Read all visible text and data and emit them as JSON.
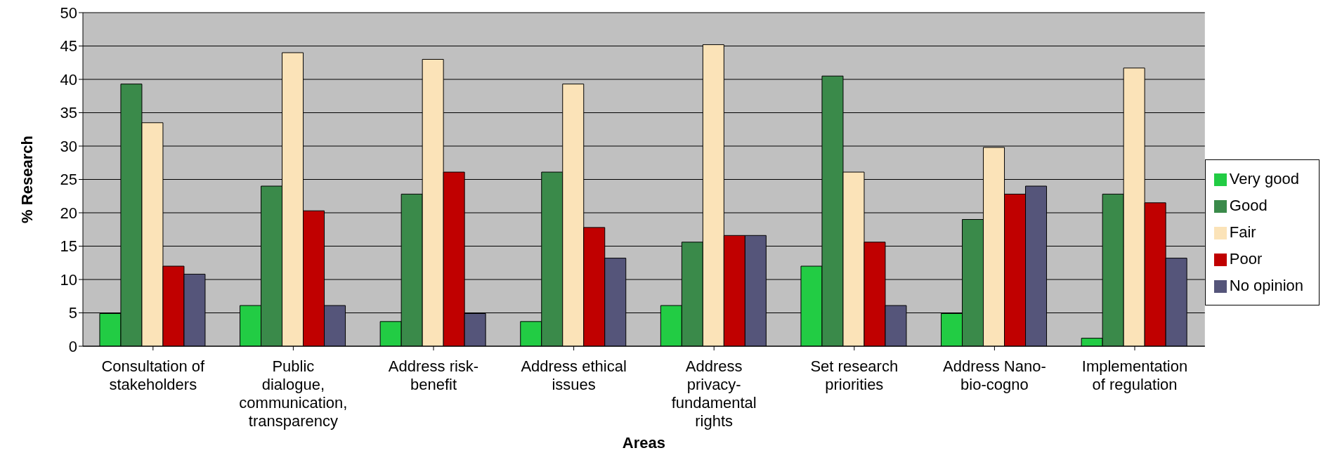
{
  "chart_data": {
    "type": "bar",
    "xlabel": "Areas",
    "ylabel": "% Research",
    "categories": [
      "Consultation of stakeholders",
      "Public dialogue, communication, transparency",
      "Address risk-benefit",
      "Address ethical issues",
      "Address privacy-fundamental rights",
      "Set research priorities",
      "Address Nano-bio-cogno",
      "Implementation of regulation"
    ],
    "series": [
      {
        "name": "Very good",
        "color": "#22cc44",
        "values": [
          4.9,
          6.1,
          3.7,
          3.7,
          6.1,
          12,
          4.9,
          1.2
        ]
      },
      {
        "name": "Good",
        "color": "#3a8a4a",
        "values": [
          39.3,
          24,
          22.8,
          26.1,
          15.6,
          40.5,
          19,
          22.8
        ]
      },
      {
        "name": "Fair",
        "color": "#fbe3b8",
        "values": [
          33.5,
          44,
          43,
          39.3,
          45.2,
          26.1,
          29.8,
          41.7
        ]
      },
      {
        "name": "Poor",
        "color": "#c00000",
        "values": [
          12,
          20.3,
          26.1,
          17.8,
          16.6,
          15.6,
          22.8,
          21.5
        ]
      },
      {
        "name": "No opinion",
        "color": "#55557a",
        "values": [
          10.8,
          6.1,
          4.9,
          13.2,
          16.6,
          6.1,
          24,
          13.2
        ]
      }
    ],
    "ylim": [
      0,
      50
    ],
    "yticks": [
      0,
      5,
      10,
      15,
      20,
      25,
      30,
      35,
      40,
      45,
      50
    ],
    "grid": "y",
    "legend": "right"
  }
}
